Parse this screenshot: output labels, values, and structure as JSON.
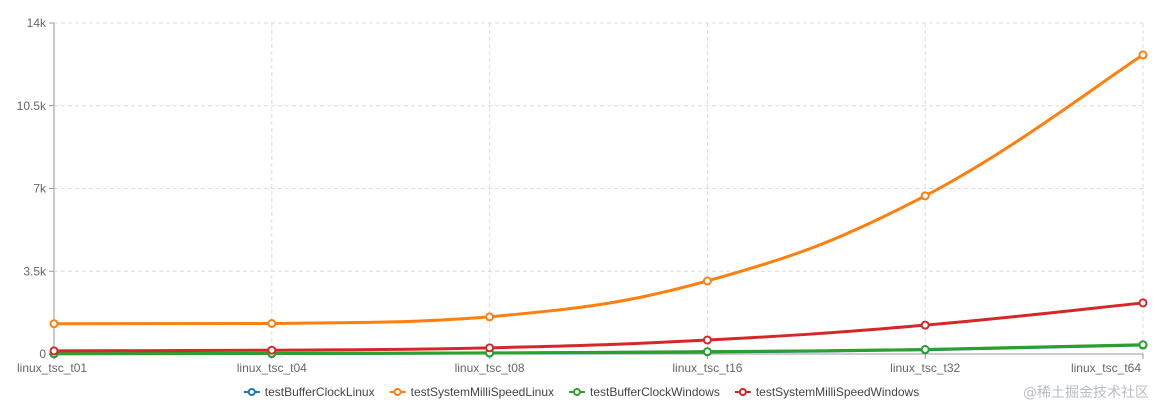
{
  "chart_data": {
    "type": "line",
    "title": "",
    "xlabel": "",
    "ylabel": "",
    "categories": [
      "linux_tsc_t01",
      "linux_tsc_t04",
      "linux_tsc_t08",
      "linux_tsc_t16",
      "linux_tsc_t32",
      "linux_tsc_t64"
    ],
    "y_ticks": [
      0,
      3500,
      7000,
      10500,
      14000
    ],
    "y_tick_labels": [
      "0",
      "3.5k",
      "7k",
      "10.5k",
      "14k"
    ],
    "ylim": [
      0,
      14000
    ],
    "grid": true,
    "legend_position": "bottom",
    "series": [
      {
        "name": "testBufferClockLinux",
        "color": "#1f77b4",
        "values": [
          10,
          20,
          40,
          90,
          180,
          380
        ]
      },
      {
        "name": "testSystemMilliSpeedLinux",
        "color": "#ff7f0e",
        "values": [
          1280,
          1290,
          1570,
          3090,
          6690,
          12650
        ]
      },
      {
        "name": "testBufferClockWindows",
        "color": "#2ca02c",
        "values": [
          15,
          25,
          45,
          100,
          190,
          390
        ]
      },
      {
        "name": "testSystemMilliSpeedWindows",
        "color": "#d62728",
        "values": [
          130,
          160,
          260,
          590,
          1220,
          2160
        ]
      }
    ]
  },
  "watermark": "@稀土掘金技术社区"
}
